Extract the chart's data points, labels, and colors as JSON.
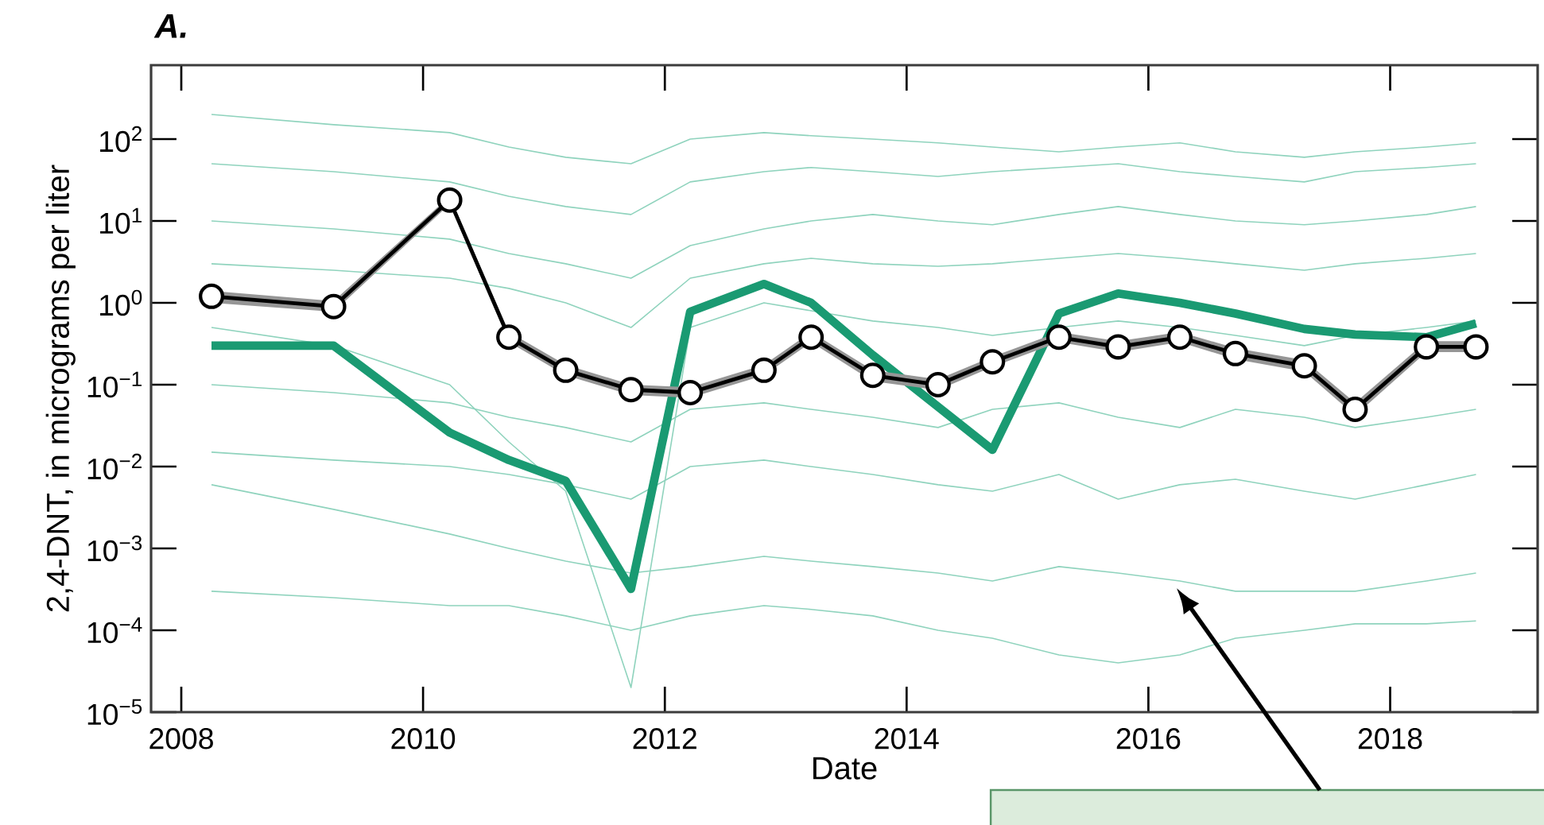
{
  "chart_data": {
    "type": "line",
    "title": "A.",
    "xlabel": "Date",
    "ylabel": "2,4-DNT, in micrograms per liter",
    "log": "y",
    "grid": false,
    "x": [
      2008.25,
      2009.26,
      2010.22,
      2010.71,
      2011.18,
      2011.72,
      2012.21,
      2012.82,
      2013.21,
      2013.72,
      2014.26,
      2014.71,
      2015.26,
      2015.75,
      2016.26,
      2016.72,
      2017.29,
      2017.71,
      2018.3,
      2018.71
    ],
    "xlim": [
      2007.75,
      2019.22
    ],
    "xticks": [
      2008,
      2010,
      2012,
      2014,
      2016,
      2018
    ],
    "ylim": [
      1e-05,
      800
    ],
    "yticks": [
      {
        "value": 1e-05,
        "label": "10$^{−5}$"
      },
      {
        "value": 0.0001,
        "label": "10$^{−4}$"
      },
      {
        "value": 0.001,
        "label": "10$^{−3}$"
      },
      {
        "value": 0.01,
        "label": "10$^{−2}$"
      },
      {
        "value": 0.1,
        "label": "10$^{−1}$"
      },
      {
        "value": 1,
        "label": "10$^{0}$"
      },
      {
        "value": 10,
        "label": "10$^{1}$"
      },
      {
        "value": 100,
        "label": "10$^{2}$"
      }
    ],
    "series": [
      {
        "color": "#8fd3bd",
        "values": [
          200,
          150,
          120,
          80,
          60,
          50,
          100,
          120,
          110,
          100,
          90,
          80,
          70,
          80,
          90,
          70,
          60,
          70,
          80,
          90
        ]
      },
      {
        "color": "#8fd3bd",
        "values": [
          50,
          40,
          30,
          20,
          15,
          12,
          30,
          40,
          45,
          40,
          35,
          40,
          45,
          50,
          40,
          35,
          30,
          40,
          45,
          50
        ]
      },
      {
        "color": "#8fd3bd",
        "values": [
          10,
          8,
          6,
          4,
          3,
          2,
          5,
          8,
          10,
          12,
          10,
          9,
          12,
          15,
          12,
          10,
          9,
          10,
          12,
          15
        ]
      },
      {
        "color": "#8fd3bd",
        "values": [
          3,
          2.5,
          2,
          1.5,
          1,
          0.5,
          2,
          3,
          3.5,
          3,
          2.8,
          3,
          3.5,
          4,
          3.5,
          3,
          2.5,
          3,
          3.5,
          4
        ]
      },
      {
        "color": "#8fd3bd",
        "values": [
          0.5,
          0.3,
          0.1,
          0.02,
          0.005,
          2e-05,
          0.5,
          1,
          0.8,
          0.6,
          0.5,
          0.4,
          0.5,
          0.6,
          0.5,
          0.4,
          0.3,
          0.4,
          0.5,
          0.6
        ]
      },
      {
        "color": "#8fd3bd",
        "values": [
          0.1,
          0.08,
          0.06,
          0.04,
          0.03,
          0.02,
          0.05,
          0.06,
          0.05,
          0.04,
          0.03,
          0.05,
          0.06,
          0.04,
          0.03,
          0.05,
          0.04,
          0.03,
          0.04,
          0.05
        ]
      },
      {
        "color": "#8fd3bd",
        "values": [
          0.015,
          0.012,
          0.01,
          0.008,
          0.006,
          0.004,
          0.01,
          0.012,
          0.01,
          0.008,
          0.006,
          0.005,
          0.008,
          0.004,
          0.006,
          0.007,
          0.005,
          0.004,
          0.006,
          0.008
        ]
      },
      {
        "color": "#8fd3bd",
        "values": [
          0.006,
          0.003,
          0.0015,
          0.001,
          0.0007,
          0.0005,
          0.0006,
          0.0008,
          0.0007,
          0.0006,
          0.0005,
          0.0004,
          0.0006,
          0.0005,
          0.0004,
          0.0003,
          0.0003,
          0.0003,
          0.0004,
          0.0005
        ]
      },
      {
        "color": "#8fd3bd",
        "values": [
          0.0003,
          0.00025,
          0.0002,
          0.0002,
          0.00015,
          0.0001,
          0.00015,
          0.0002,
          0.00018,
          0.00015,
          0.0001,
          8e-05,
          5e-05,
          4e-05,
          5e-05,
          8e-05,
          0.0001,
          0.00012,
          0.00012,
          0.00013
        ]
      },
      {
        "color": "#1a9a72",
        "values": [
          0.3,
          0.3,
          0.026,
          0.012,
          0.0067,
          0.00032,
          0.78,
          1.7,
          1.0,
          0.23,
          null,
          0.016,
          0.74,
          1.3,
          1.0,
          0.74,
          0.48,
          0.41,
          0.38,
          0.56
        ]
      },
      {
        "color": "#000000",
        "marker": "circle",
        "values": [
          1.2,
          0.9,
          18,
          0.38,
          0.15,
          0.087,
          0.08,
          0.15,
          0.38,
          0.13,
          0.1,
          0.19,
          0.38,
          0.29,
          0.38,
          0.24,
          0.17,
          0.05,
          0.29,
          0.29
        ],
        "lower": [
          1.0,
          0.78,
          16,
          0.33,
          0.13,
          0.075,
          0.069,
          0.13,
          0.33,
          0.11,
          0.086,
          0.165,
          0.33,
          0.25,
          0.33,
          0.205,
          0.145,
          0.042,
          0.25,
          0.25
        ],
        "upper": [
          1.4,
          1.05,
          20,
          0.44,
          0.175,
          0.1,
          0.093,
          0.175,
          0.44,
          0.15,
          0.116,
          0.22,
          0.44,
          0.34,
          0.44,
          0.28,
          0.2,
          0.06,
          0.34,
          0.34
        ]
      }
    ]
  }
}
